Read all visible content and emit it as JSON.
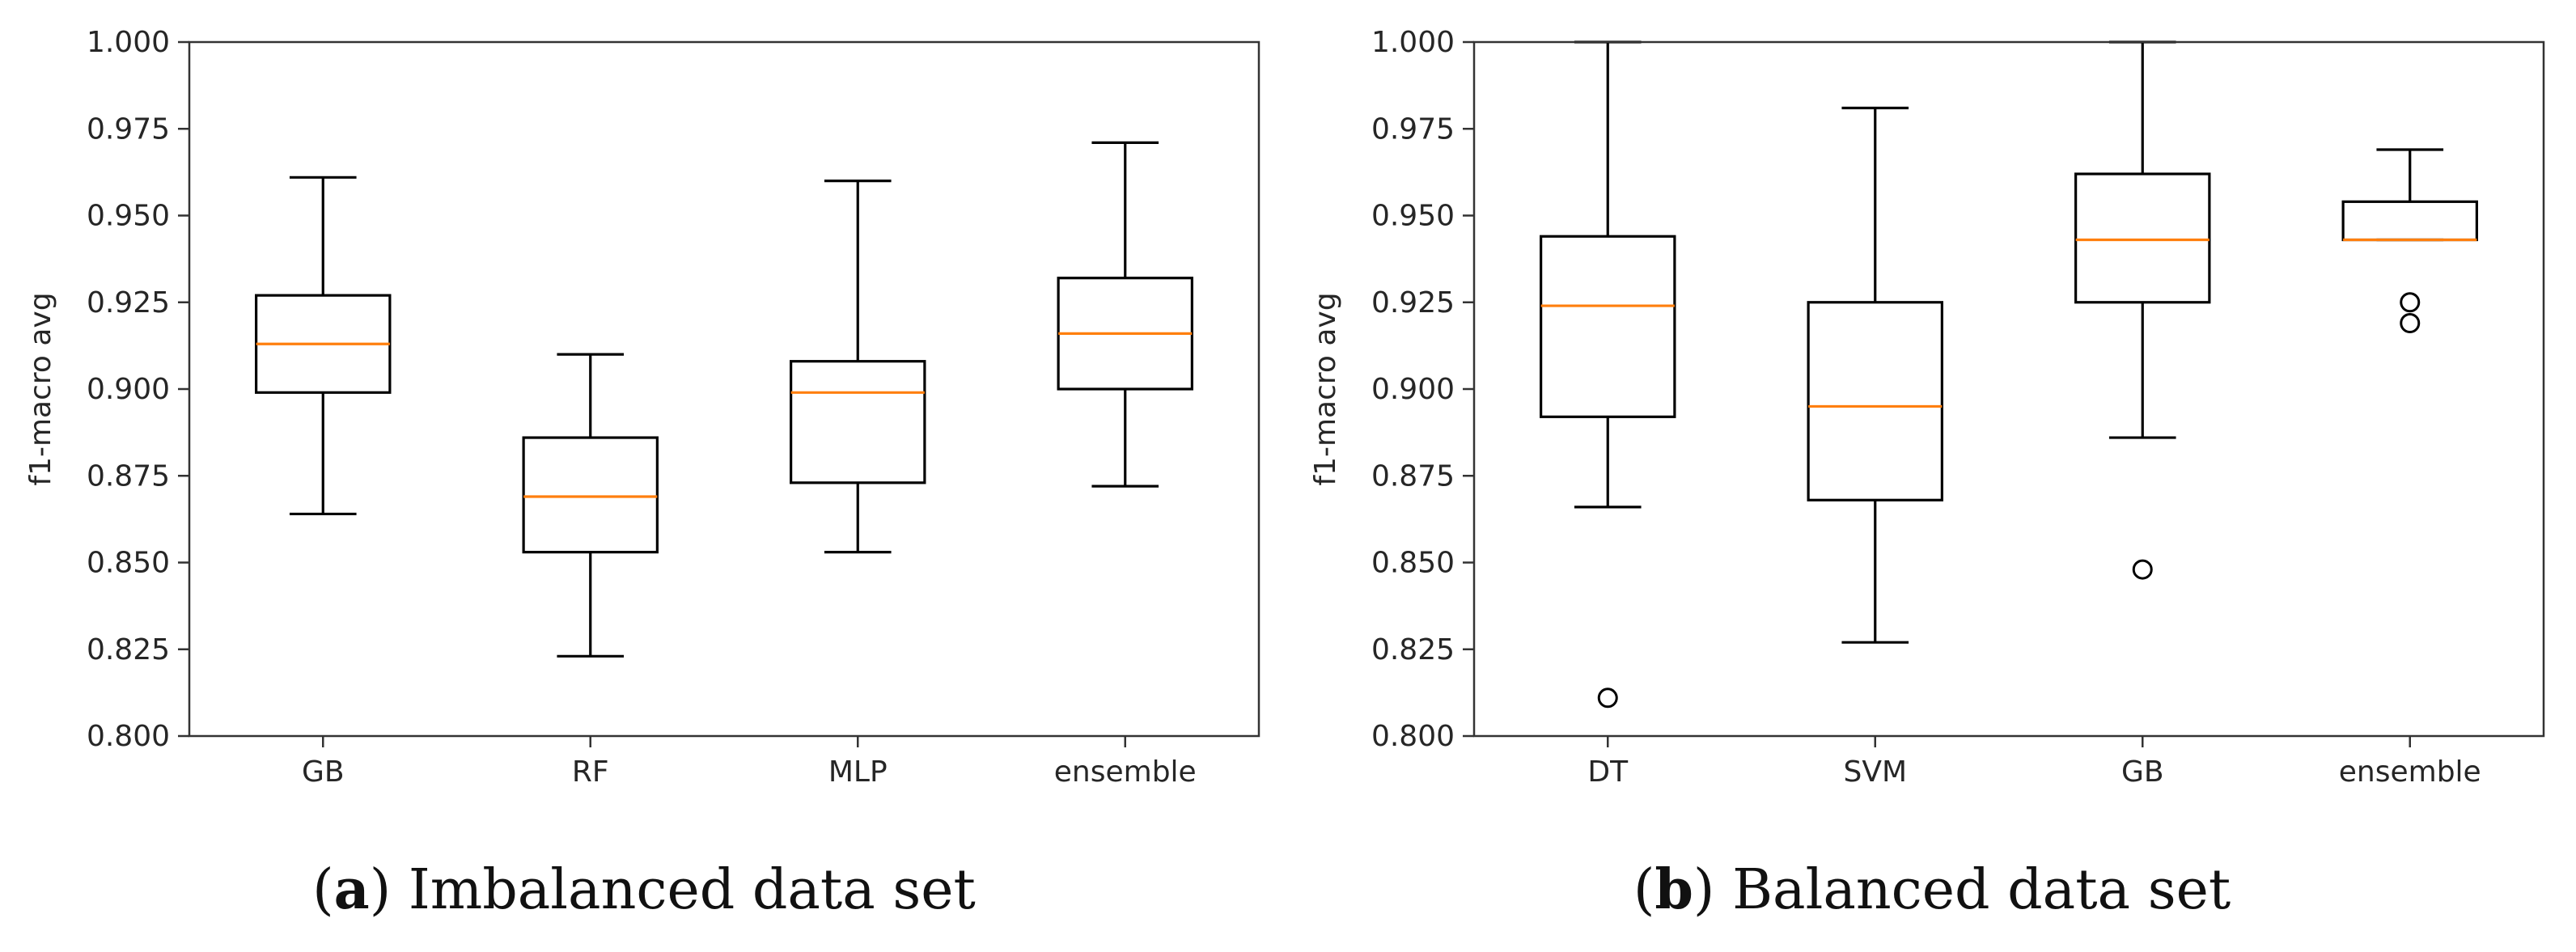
{
  "chart_data": [
    {
      "type": "box",
      "id": "a",
      "caption_letter": "a",
      "caption_text": "Imbalanced data set",
      "ylabel": "f1-macro avg",
      "ylim": [
        0.8,
        1.0
      ],
      "yticks": [
        "0.800",
        "0.825",
        "0.850",
        "0.875",
        "0.900",
        "0.925",
        "0.950",
        "0.975",
        "1.000"
      ],
      "categories": [
        "GB",
        "RF",
        "MLP",
        "ensemble"
      ],
      "boxes": [
        {
          "whisker_low": 0.864,
          "q1": 0.899,
          "median": 0.913,
          "q3": 0.927,
          "whisker_high": 0.961,
          "outliers": []
        },
        {
          "whisker_low": 0.823,
          "q1": 0.853,
          "median": 0.869,
          "q3": 0.886,
          "whisker_high": 0.91,
          "outliers": []
        },
        {
          "whisker_low": 0.853,
          "q1": 0.873,
          "median": 0.899,
          "q3": 0.908,
          "whisker_high": 0.96,
          "outliers": []
        },
        {
          "whisker_low": 0.872,
          "q1": 0.9,
          "median": 0.916,
          "q3": 0.932,
          "whisker_high": 0.971,
          "outliers": []
        }
      ]
    },
    {
      "type": "box",
      "id": "b",
      "caption_letter": "b",
      "caption_text": "Balanced data set",
      "ylabel": "f1-macro avg",
      "ylim": [
        0.8,
        1.0
      ],
      "yticks": [
        "0.800",
        "0.825",
        "0.850",
        "0.875",
        "0.900",
        "0.925",
        "0.950",
        "0.975",
        "1.000"
      ],
      "categories": [
        "DT",
        "SVM",
        "GB",
        "ensemble"
      ],
      "boxes": [
        {
          "whisker_low": 0.866,
          "q1": 0.892,
          "median": 0.924,
          "q3": 0.944,
          "whisker_high": 1.0,
          "outliers": [
            0.811
          ]
        },
        {
          "whisker_low": 0.827,
          "q1": 0.868,
          "median": 0.895,
          "q3": 0.925,
          "whisker_high": 0.981,
          "outliers": []
        },
        {
          "whisker_low": 0.886,
          "q1": 0.925,
          "median": 0.943,
          "q3": 0.962,
          "whisker_high": 1.0,
          "outliers": [
            0.848
          ]
        },
        {
          "whisker_low": 0.943,
          "q1": 0.943,
          "median": 0.943,
          "q3": 0.954,
          "whisker_high": 0.969,
          "outliers": [
            0.925,
            0.919
          ]
        }
      ]
    }
  ],
  "colors": {
    "median": "#ff7f0e",
    "box": "#000000",
    "axis": "#333333"
  }
}
